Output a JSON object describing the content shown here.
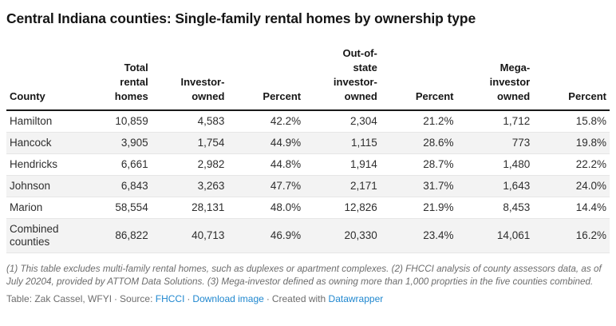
{
  "chart_data": {
    "type": "table",
    "title": "Central Indiana counties: Single-family rental homes by ownership type",
    "columns": [
      "County",
      "Total\nrental\nhomes",
      "Investor-\nowned",
      "Percent",
      "Out-of-\nstate\ninvestor-\nowned",
      "Percent",
      "Mega-\ninvestor\nowned",
      "Percent"
    ],
    "rows": [
      [
        "Hamilton",
        "10,859",
        "4,583",
        "42.2%",
        "2,304",
        "21.2%",
        "1,712",
        "15.8%"
      ],
      [
        "Hancock",
        "3,905",
        "1,754",
        "44.9%",
        "1,115",
        "28.6%",
        "773",
        "19.8%"
      ],
      [
        "Hendricks",
        "6,661",
        "2,982",
        "44.8%",
        "1,914",
        "28.7%",
        "1,480",
        "22.2%"
      ],
      [
        "Johnson",
        "6,843",
        "3,263",
        "47.7%",
        "2,171",
        "31.7%",
        "1,643",
        "24.0%"
      ],
      [
        "Marion",
        "58,554",
        "28,131",
        "48.0%",
        "12,826",
        "21.9%",
        "8,453",
        "14.4%"
      ],
      [
        "Combined\ncounties",
        "86,822",
        "40,713",
        "46.9%",
        "20,330",
        "23.4%",
        "14,061",
        "16.2%"
      ]
    ],
    "notes": "(1) This table excludes multi-family rental homes, such as duplexes or apartment complexes. (2) FHCCI analysis of county assessors data, as of July 20204, provided by ATTOM Data Solutions. (3) Mega-investor defined as owning more than 1,000 proprties in the five counties combined.",
    "layout_hints": {
      "zebra_striping": true,
      "numeric_columns_right_aligned": true
    }
  },
  "footer": {
    "byline": "Table: Zak Cassel, WFYI",
    "separator": "·",
    "source_label": "Source:",
    "source_link": "FHCCI",
    "download_link": "Download image",
    "created_with_label": "Created with",
    "created_with_link": "Datawrapper"
  },
  "colors": {
    "link_blue": "#1f87cf",
    "stripe_gray": "#f3f3f3",
    "header_rule": "#1a1a1a",
    "note_gray": "#6d6d6d"
  }
}
